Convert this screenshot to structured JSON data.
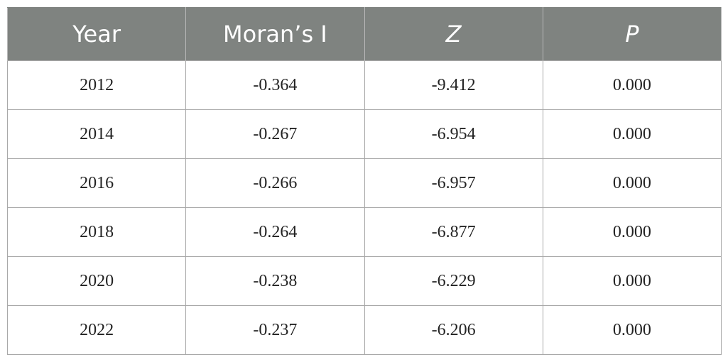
{
  "table": {
    "headers": [
      "Year",
      "Moran’s I",
      "Z",
      "P"
    ],
    "rows": [
      [
        "2012",
        "-0.364",
        "-9.412",
        "0.000"
      ],
      [
        "2014",
        "-0.267",
        "-6.954",
        "0.000"
      ],
      [
        "2016",
        "-0.266",
        "-6.957",
        "0.000"
      ],
      [
        "2018",
        "-0.264",
        "-6.877",
        "0.000"
      ],
      [
        "2020",
        "-0.238",
        "-6.229",
        "0.000"
      ],
      [
        "2022",
        "-0.237",
        "-6.206",
        "0.000"
      ]
    ]
  },
  "colors": {
    "header_bg": "#7f8380",
    "header_text": "#ffffff",
    "border": "#a8a8a8"
  }
}
